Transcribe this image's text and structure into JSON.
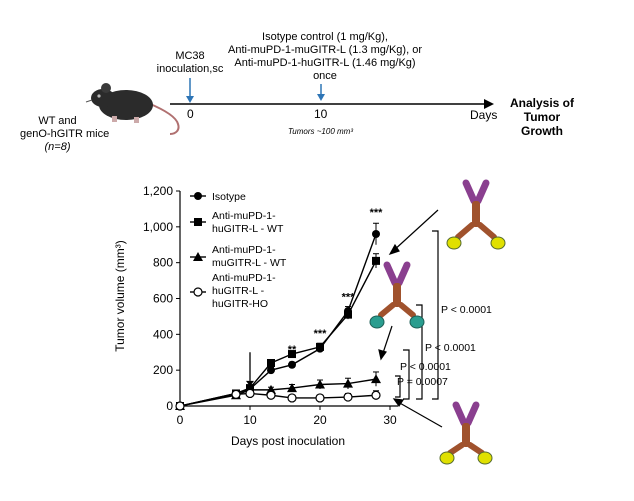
{
  "schema": {
    "mice_label_line1": "WT and",
    "mice_label_line2": "genO-hGITR mice",
    "mice_n": "(n=8)",
    "inoculation_line1": "MC38",
    "inoculation_line2": "inoculation,sc",
    "treatment_line1": "Isotype control (1 mg/Kg),",
    "treatment_line2": "Anti-muPD-1-muGITR-L  (1.3 mg/Kg),  or",
    "treatment_line3": "Anti-muPD-1-huGITR-L  (1.46 mg/Kg)",
    "treatment_line4": "once",
    "tick_start": "0",
    "tick_dose": "10",
    "axis_unit": "Days",
    "tumor_note": "Tumors ~100 mm³",
    "endpoint_line1": "Analysis of",
    "endpoint_line2": "Tumor",
    "endpoint_line3": "Growth",
    "colors": {
      "arrow_blue": "#2e75b6",
      "antibody_purple": "#8a3f8f",
      "antibody_brown": "#a0522d",
      "receptor_yellow": "#e0e000",
      "receptor_teal": "#2a9d8f"
    }
  },
  "chart_data": {
    "type": "line",
    "ylabel": "Tumor volume (mm³)",
    "xlabel": "Days post inoculation",
    "xlim": [
      0,
      30
    ],
    "ylim": [
      0,
      1200
    ],
    "x_ticks": [
      "0",
      "10",
      "20",
      "30"
    ],
    "y_ticks": [
      "0",
      "200",
      "400",
      "600",
      "800",
      "1,000",
      "1,200"
    ],
    "legend": [
      {
        "line1": "Isotype",
        "line2": "",
        "line3": "",
        "marker": "circle-filled"
      },
      {
        "line1": "Anti-muPD-1-",
        "line2": "huGITR-L - WT",
        "line3": "",
        "marker": "square-filled"
      },
      {
        "line1": "Anti-muPD-1-",
        "line2": "muGITR-L - WT",
        "line3": "",
        "marker": "triangle-filled"
      },
      {
        "line1": "Anti-muPD-1-",
        "line2": "huGITR-L -",
        "line3": "huGITR-HO",
        "marker": "circle-open"
      }
    ],
    "series": [
      {
        "marker": "circle-filled",
        "x": [
          0,
          8,
          10,
          13,
          16,
          20,
          24,
          28
        ],
        "y": [
          0,
          70,
          95,
          200,
          230,
          320,
          530,
          960
        ],
        "err": [
          0,
          10,
          10,
          15,
          15,
          20,
          25,
          60
        ]
      },
      {
        "marker": "square-filled",
        "x": [
          0,
          8,
          10,
          13,
          16,
          20,
          24,
          28
        ],
        "y": [
          0,
          70,
          100,
          240,
          290,
          330,
          510,
          810
        ],
        "err": [
          0,
          10,
          10,
          15,
          15,
          20,
          25,
          40
        ]
      },
      {
        "marker": "triangle-filled",
        "x": [
          0,
          8,
          10,
          13,
          16,
          20,
          24,
          28
        ],
        "y": [
          0,
          60,
          90,
          90,
          100,
          120,
          125,
          150
        ],
        "err": [
          0,
          10,
          10,
          15,
          20,
          25,
          30,
          40
        ]
      },
      {
        "marker": "circle-open",
        "x": [
          0,
          8,
          10,
          13,
          16,
          20,
          24,
          28
        ],
        "y": [
          0,
          65,
          70,
          60,
          45,
          45,
          50,
          60
        ],
        "err": [
          0,
          10,
          10,
          10,
          15,
          15,
          20,
          25
        ]
      }
    ],
    "significance": [
      {
        "label": "**",
        "x": 16,
        "y": 295
      },
      {
        "label": "***",
        "x": 20,
        "y": 385
      },
      {
        "label": "***",
        "x": 24,
        "y": 590
      },
      {
        "label": "***",
        "x": 28,
        "y": 1060
      }
    ],
    "pvalues": [
      "P < 0.0001",
      "P < 0.0001",
      "P < 0.0001",
      "P = 0.0007"
    ],
    "dose_arrow_day": 10
  }
}
